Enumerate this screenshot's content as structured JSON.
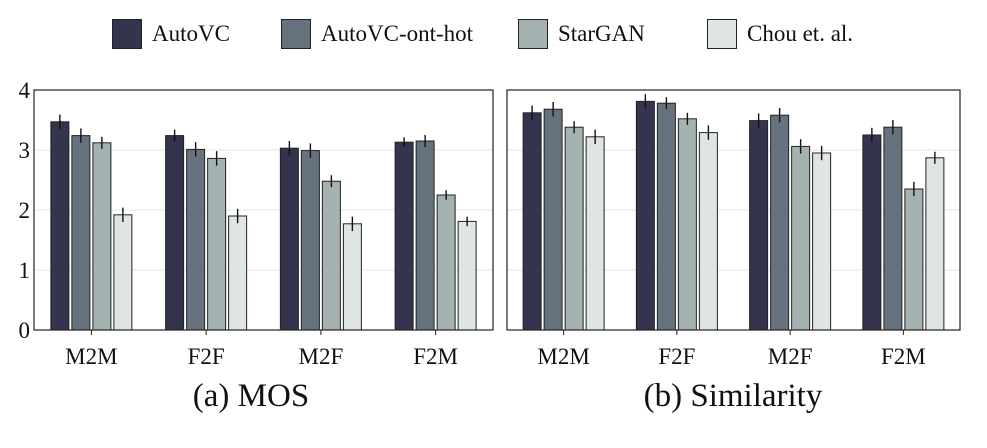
{
  "legend": [
    {
      "label": "AutoVC",
      "color": "#35344f"
    },
    {
      "label": "AutoVC-ont-hot",
      "color": "#66737f"
    },
    {
      "label": "StarGAN",
      "color": "#a4b2b2"
    },
    {
      "label": "Chou et. al.",
      "color": "#dfe5e3"
    }
  ],
  "chart_data": [
    {
      "type": "bar",
      "caption": "(a)  MOS",
      "categories": [
        "M2M",
        "F2F",
        "M2F",
        "F2M"
      ],
      "ylim": [
        0,
        4
      ],
      "yticks": [
        "0",
        "1",
        "2",
        "3",
        "4"
      ],
      "grid": true,
      "series": [
        {
          "name": "AutoVC",
          "values": [
            3.47,
            3.24,
            3.03,
            3.13
          ],
          "errors": [
            0.12,
            0.1,
            0.12,
            0.08
          ]
        },
        {
          "name": "AutoVC-ont-hot",
          "values": [
            3.24,
            3.01,
            2.99,
            3.15
          ],
          "errors": [
            0.12,
            0.12,
            0.12,
            0.1
          ]
        },
        {
          "name": "StarGAN",
          "values": [
            3.12,
            2.86,
            2.48,
            2.25
          ],
          "errors": [
            0.1,
            0.12,
            0.1,
            0.08
          ]
        },
        {
          "name": "Chou et. al.",
          "values": [
            1.92,
            1.9,
            1.77,
            1.81
          ],
          "errors": [
            0.12,
            0.12,
            0.12,
            0.08
          ]
        }
      ]
    },
    {
      "type": "bar",
      "caption": "(b)  Similarity",
      "categories": [
        "M2M",
        "F2F",
        "M2F",
        "F2M"
      ],
      "ylim": [
        0,
        4
      ],
      "yticks": [],
      "grid": true,
      "series": [
        {
          "name": "AutoVC",
          "values": [
            3.62,
            3.81,
            3.49,
            3.25
          ],
          "errors": [
            0.12,
            0.12,
            0.12,
            0.12
          ]
        },
        {
          "name": "AutoVC-ont-hot",
          "values": [
            3.68,
            3.78,
            3.58,
            3.38
          ],
          "errors": [
            0.12,
            0.1,
            0.12,
            0.12
          ]
        },
        {
          "name": "StarGAN",
          "values": [
            3.38,
            3.52,
            3.06,
            2.35
          ],
          "errors": [
            0.1,
            0.1,
            0.12,
            0.12
          ]
        },
        {
          "name": "Chou et. al.",
          "values": [
            3.22,
            3.29,
            2.95,
            2.87
          ],
          "errors": [
            0.12,
            0.12,
            0.12,
            0.1
          ]
        }
      ]
    }
  ]
}
